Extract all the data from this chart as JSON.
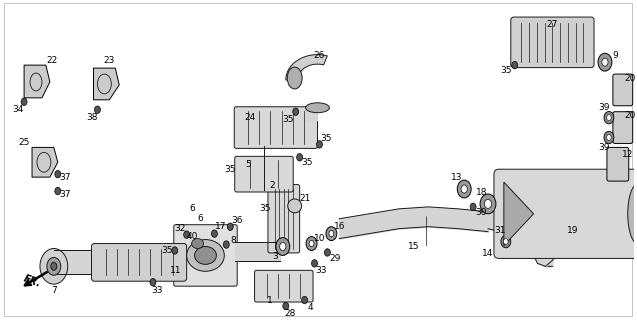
{
  "bg_color": "#ffffff",
  "line_color": "#1a1a1a",
  "fig_width": 6.37,
  "fig_height": 3.2,
  "dpi": 100
}
